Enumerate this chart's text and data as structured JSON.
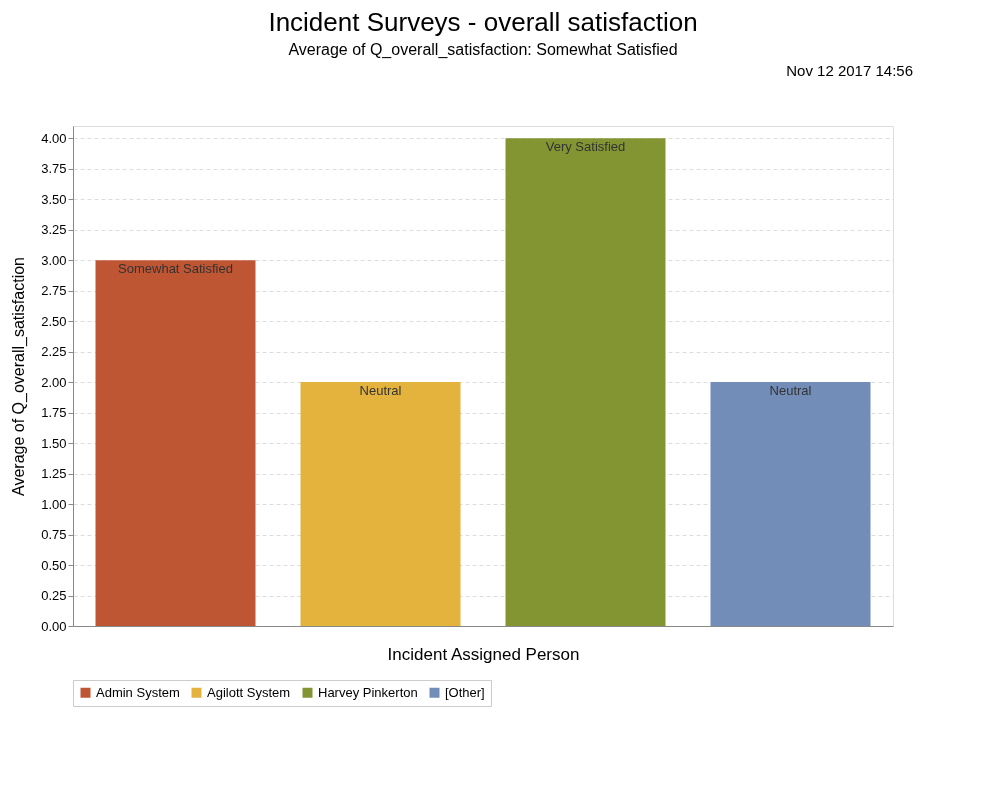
{
  "chart_data": {
    "type": "bar",
    "title": "Incident Surveys - overall satisfaction",
    "subtitle": "Average of Q_overall_satisfaction: Somewhat Satisfied",
    "xlabel": "Incident Assigned Person",
    "ylabel": "Average of Q_overall_satisfaction",
    "annotations": [
      "Nov 12 2017 14:56"
    ],
    "categories": [
      null,
      null,
      null,
      null
    ],
    "series": [
      {
        "name": "Admin System",
        "color": "#bf5633",
        "values": [
          3,
          null,
          null,
          null
        ],
        "value_labels": [
          "Somewhat Satisfied",
          null,
          null,
          null
        ]
      },
      {
        "name": "Agilott System",
        "color": "#e3b33e",
        "values": [
          null,
          2,
          null,
          null
        ],
        "value_labels": [
          null,
          "Neutral",
          null,
          null
        ]
      },
      {
        "name": "Harvey Pinkerton",
        "color": "#839533",
        "values": [
          null,
          null,
          4,
          null
        ],
        "value_labels": [
          null,
          null,
          "Very Satisfied",
          null
        ]
      },
      {
        "name": "[Other]",
        "color": "#718db8",
        "values": [
          null,
          null,
          null,
          2
        ],
        "value_labels": [
          null,
          null,
          null,
          "Neutral"
        ]
      }
    ],
    "ylim": [
      0,
      4.1
    ],
    "yticks": [
      {
        "value": 0,
        "label": "0.00"
      },
      {
        "value": 0.25,
        "label": "0.25"
      },
      {
        "value": 0.5,
        "label": "0.50"
      },
      {
        "value": 0.75,
        "label": "0.75"
      },
      {
        "value": 1,
        "label": "1.00"
      },
      {
        "value": 1.25,
        "label": "1.25"
      },
      {
        "value": 1.5,
        "label": "1.50"
      },
      {
        "value": 1.75,
        "label": "1.75"
      },
      {
        "value": 2,
        "label": "2.00"
      },
      {
        "value": 2.25,
        "label": "2.25"
      },
      {
        "value": 2.5,
        "label": "2.50"
      },
      {
        "value": 2.75,
        "label": "2.75"
      },
      {
        "value": 3,
        "label": "3.00"
      },
      {
        "value": 3.25,
        "label": "3.25"
      },
      {
        "value": 3.5,
        "label": "3.50"
      },
      {
        "value": 3.75,
        "label": "3.75"
      },
      {
        "value": 4,
        "label": "4.00"
      }
    ],
    "grid": "y",
    "legend": "bottom",
    "tick_labels": "y"
  }
}
